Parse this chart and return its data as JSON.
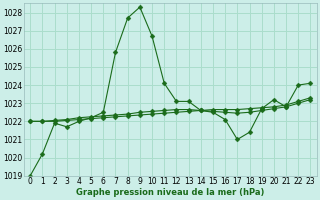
{
  "xlabel": "Graphe pression niveau de la mer (hPa)",
  "bg_color": "#cceee8",
  "grid_color": "#aaddcc",
  "line_color": "#1a6b1a",
  "markersize": 2.5,
  "x": [
    0,
    1,
    2,
    3,
    4,
    5,
    6,
    7,
    8,
    9,
    10,
    11,
    12,
    13,
    14,
    15,
    16,
    17,
    18,
    19,
    20,
    21,
    22,
    23
  ],
  "series1": [
    1019.0,
    1020.2,
    1021.9,
    1021.7,
    1022.0,
    1022.2,
    1022.5,
    1025.8,
    1027.7,
    1028.3,
    1026.7,
    1024.1,
    1023.1,
    1023.1,
    1022.6,
    1022.5,
    1022.1,
    1021.0,
    1021.4,
    1022.7,
    1023.2,
    1022.8,
    1024.0,
    1024.1
  ],
  "series2": [
    1022.0,
    1022.0,
    1022.0,
    1022.05,
    1022.1,
    1022.15,
    1022.2,
    1022.25,
    1022.3,
    1022.35,
    1022.4,
    1022.45,
    1022.5,
    1022.55,
    1022.6,
    1022.65,
    1022.65,
    1022.65,
    1022.7,
    1022.75,
    1022.8,
    1022.9,
    1023.1,
    1023.3
  ],
  "series3": [
    1022.0,
    1022.0,
    1022.05,
    1022.1,
    1022.2,
    1022.25,
    1022.3,
    1022.35,
    1022.4,
    1022.5,
    1022.55,
    1022.6,
    1022.65,
    1022.65,
    1022.6,
    1022.55,
    1022.5,
    1022.45,
    1022.5,
    1022.6,
    1022.7,
    1022.8,
    1023.0,
    1023.2
  ],
  "ylim": [
    1019,
    1028.5
  ],
  "yticks": [
    1019,
    1020,
    1021,
    1022,
    1023,
    1024,
    1025,
    1026,
    1027,
    1028
  ],
  "xticks": [
    0,
    1,
    2,
    3,
    4,
    5,
    6,
    7,
    8,
    9,
    10,
    11,
    12,
    13,
    14,
    15,
    16,
    17,
    18,
    19,
    20,
    21,
    22,
    23
  ],
  "tick_fontsize": 5.5,
  "xlabel_fontsize": 6.0
}
